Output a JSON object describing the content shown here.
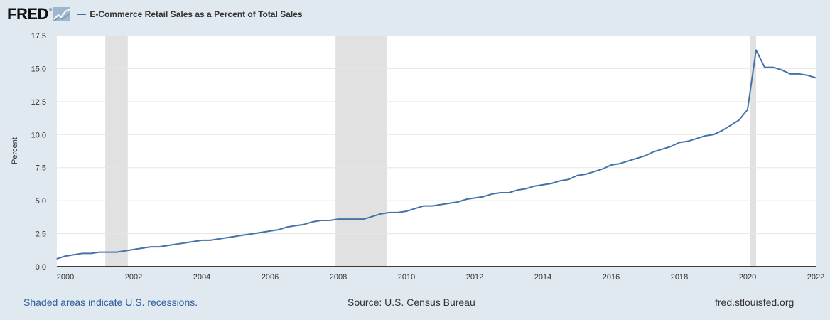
{
  "header": {
    "logo_text": "FRED",
    "logo_mark": "®",
    "logo_icon": "line-chart-icon",
    "legend_label": "E-Commerce Retail Sales as a Percent of Total Sales",
    "legend_color": "#4572a7"
  },
  "footer": {
    "recession_note": "Shaded areas indicate U.S. recessions.",
    "source": "Source: U.S. Census Bureau",
    "site": "fred.stlouisfed.org"
  },
  "chart_data": {
    "type": "line",
    "title": "",
    "xlabel": "",
    "ylabel": "Percent",
    "xlim": [
      1999.75,
      2022.0
    ],
    "ylim": [
      0,
      17.5
    ],
    "yticks": [
      0.0,
      2.5,
      5.0,
      7.5,
      10.0,
      12.5,
      15.0,
      17.5
    ],
    "ytick_labels": [
      "0.0",
      "2.5",
      "5.0",
      "7.5",
      "10.0",
      "12.5",
      "15.0",
      "17.5"
    ],
    "xticks": [
      2000,
      2002,
      2004,
      2006,
      2008,
      2010,
      2012,
      2014,
      2016,
      2018,
      2020,
      2022
    ],
    "xtick_labels": [
      "2000",
      "2002",
      "2004",
      "2006",
      "2008",
      "2010",
      "2012",
      "2014",
      "2016",
      "2018",
      "2020",
      "2022"
    ],
    "grid": true,
    "line_color": "#4572a7",
    "recession_color": "#e1e1e1",
    "recessions": [
      [
        2001.17,
        2001.83
      ],
      [
        2007.92,
        2009.42
      ],
      [
        2020.08,
        2020.25
      ]
    ],
    "series": [
      {
        "x": [
          1999.75,
          2000.0,
          2000.25,
          2000.5,
          2000.75,
          2001.0,
          2001.25,
          2001.5,
          2001.75,
          2002.0,
          2002.25,
          2002.5,
          2002.75,
          2003.0,
          2003.25,
          2003.5,
          2003.75,
          2004.0,
          2004.25,
          2004.5,
          2004.75,
          2005.0,
          2005.25,
          2005.5,
          2005.75,
          2006.0,
          2006.25,
          2006.5,
          2006.75,
          2007.0,
          2007.25,
          2007.5,
          2007.75,
          2008.0,
          2008.25,
          2008.5,
          2008.75,
          2009.0,
          2009.25,
          2009.5,
          2009.75,
          2010.0,
          2010.25,
          2010.5,
          2010.75,
          2011.0,
          2011.25,
          2011.5,
          2011.75,
          2012.0,
          2012.25,
          2012.5,
          2012.75,
          2013.0,
          2013.25,
          2013.5,
          2013.75,
          2014.0,
          2014.25,
          2014.5,
          2014.75,
          2015.0,
          2015.25,
          2015.5,
          2015.75,
          2016.0,
          2016.25,
          2016.5,
          2016.75,
          2017.0,
          2017.25,
          2017.5,
          2017.75,
          2018.0,
          2018.25,
          2018.5,
          2018.75,
          2019.0,
          2019.25,
          2019.5,
          2019.75,
          2020.0,
          2020.25,
          2020.5,
          2020.75,
          2021.0,
          2021.25,
          2021.5,
          2021.75,
          2022.0
        ],
        "values": [
          0.6,
          0.8,
          0.9,
          1.0,
          1.0,
          1.1,
          1.1,
          1.1,
          1.2,
          1.3,
          1.4,
          1.5,
          1.5,
          1.6,
          1.7,
          1.8,
          1.9,
          2.0,
          2.0,
          2.1,
          2.2,
          2.3,
          2.4,
          2.5,
          2.6,
          2.7,
          2.8,
          3.0,
          3.1,
          3.2,
          3.4,
          3.5,
          3.5,
          3.6,
          3.6,
          3.6,
          3.6,
          3.8,
          4.0,
          4.1,
          4.1,
          4.2,
          4.4,
          4.6,
          4.6,
          4.7,
          4.8,
          4.9,
          5.1,
          5.2,
          5.3,
          5.5,
          5.6,
          5.6,
          5.8,
          5.9,
          6.1,
          6.2,
          6.3,
          6.5,
          6.6,
          6.9,
          7.0,
          7.2,
          7.4,
          7.7,
          7.8,
          8.0,
          8.2,
          8.4,
          8.7,
          8.9,
          9.1,
          9.4,
          9.5,
          9.7,
          9.9,
          10.0,
          10.3,
          10.7,
          11.1,
          11.9,
          16.4,
          15.1,
          15.1,
          14.9,
          14.6,
          14.6,
          14.5,
          14.3
        ]
      }
    ]
  }
}
